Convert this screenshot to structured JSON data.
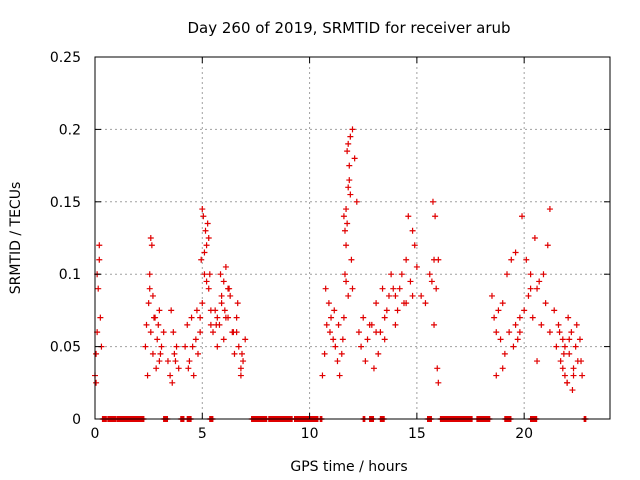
{
  "chart_data": {
    "type": "scatter",
    "title": "Day 260 of 2019, SRMTID for receiver arub",
    "xlabel": "GPS time / hours",
    "ylabel": "SRMTID / TECUs",
    "xlim": [
      0,
      24
    ],
    "ylim": [
      0,
      0.25
    ],
    "xticks": [
      0,
      5,
      10,
      15,
      20
    ],
    "xtick_labels": [
      "0",
      "5",
      "10",
      "15",
      "20"
    ],
    "yticks": [
      0,
      0.05,
      0.1,
      0.15,
      0.2,
      0.25
    ],
    "ytick_labels": [
      "0",
      "0.05",
      "0.1",
      "0.15",
      "0.2",
      "0.25"
    ],
    "grid": true,
    "marker": "+",
    "marker_color": "#e00000",
    "series": [
      {
        "name": "SRMTID",
        "x": [
          0.0,
          0.05,
          0.1,
          0.15,
          0.2,
          0.25,
          0.3,
          0.05,
          0.1,
          0.2,
          2.35,
          2.4,
          2.5,
          2.6,
          2.7,
          2.8,
          2.9,
          3.0,
          3.1,
          3.2,
          2.45,
          2.55,
          2.65,
          2.75,
          2.85,
          2.95,
          3.05,
          2.55,
          2.6,
          2.7,
          3.0,
          3.4,
          3.5,
          3.6,
          3.7,
          3.8,
          3.9,
          3.55,
          3.65,
          3.75,
          4.2,
          4.3,
          4.4,
          4.5,
          4.6,
          4.7,
          4.8,
          4.9,
          5.0,
          5.1,
          5.2,
          5.3,
          5.4,
          4.35,
          4.55,
          4.75,
          4.95,
          5.15,
          5.35,
          5.0,
          5.05,
          5.1,
          5.2,
          5.25,
          5.3,
          4.9,
          5.4,
          5.5,
          5.6,
          5.7,
          5.8,
          5.9,
          6.0,
          6.1,
          6.2,
          6.3,
          6.4,
          6.5,
          6.6,
          6.7,
          6.8,
          6.9,
          7.0,
          5.65,
          5.85,
          6.05,
          6.25,
          6.45,
          6.65,
          6.85,
          5.7,
          5.9,
          6.0,
          6.1,
          6.2,
          6.6,
          6.8,
          10.6,
          10.7,
          10.8,
          10.9,
          11.0,
          11.1,
          11.2,
          11.3,
          11.4,
          11.5,
          10.75,
          10.95,
          11.15,
          11.35,
          11.55,
          11.6,
          11.65,
          11.7,
          11.75,
          11.8,
          11.85,
          11.9,
          12.0,
          12.1,
          12.2,
          11.6,
          11.65,
          11.7,
          11.75,
          11.8,
          11.85,
          11.9,
          11.95,
          12.0,
          11.7,
          11.8,
          12.3,
          12.5,
          12.7,
          12.9,
          13.1,
          13.3,
          13.5,
          13.7,
          13.9,
          14.1,
          14.3,
          14.5,
          14.7,
          14.9,
          12.4,
          12.8,
          13.2,
          13.6,
          14.0,
          14.4,
          14.8,
          12.6,
          13.0,
          13.4,
          13.8,
          14.2,
          14.6,
          13.1,
          13.5,
          14.0,
          14.5,
          14.8,
          15.0,
          15.2,
          15.4,
          15.6,
          15.7,
          15.8,
          15.9,
          16.0,
          15.75,
          15.85,
          15.95,
          15.8,
          16.0,
          18.5,
          18.6,
          18.7,
          18.8,
          18.9,
          19.0,
          19.2,
          19.4,
          19.6,
          19.8,
          20.0,
          20.2,
          20.4,
          20.6,
          20.8,
          21.0,
          21.2,
          21.4,
          18.7,
          19.1,
          19.5,
          19.9,
          20.3,
          20.7,
          21.1,
          19.3,
          19.7,
          20.1,
          20.5,
          20.9,
          19.0,
          19.8,
          20.6,
          21.2,
          19.6,
          20.3,
          21.5,
          21.6,
          21.7,
          21.8,
          21.9,
          22.0,
          22.1,
          22.2,
          22.3,
          22.4,
          22.5,
          22.6,
          22.7,
          21.65,
          21.85,
          22.05,
          22.25,
          22.45,
          22.65,
          21.8,
          21.9,
          22.0,
          22.1,
          22.3
        ],
        "y": [
          0.03,
          0.045,
          0.06,
          0.09,
          0.12,
          0.07,
          0.05,
          0.025,
          0.1,
          0.11,
          0.05,
          0.065,
          0.08,
          0.06,
          0.045,
          0.07,
          0.055,
          0.04,
          0.05,
          0.06,
          0.03,
          0.09,
          0.12,
          0.07,
          0.035,
          0.065,
          0.045,
          0.1,
          0.125,
          0.085,
          0.075,
          0.04,
          0.03,
          0.025,
          0.045,
          0.05,
          0.035,
          0.075,
          0.06,
          0.04,
          0.05,
          0.065,
          0.04,
          0.07,
          0.03,
          0.055,
          0.045,
          0.06,
          0.08,
          0.1,
          0.12,
          0.09,
          0.065,
          0.035,
          0.05,
          0.075,
          0.11,
          0.13,
          0.1,
          0.145,
          0.14,
          0.115,
          0.095,
          0.135,
          0.125,
          0.07,
          0.075,
          0.06,
          0.075,
          0.05,
          0.065,
          0.08,
          0.055,
          0.07,
          0.09,
          0.085,
          0.06,
          0.045,
          0.07,
          0.05,
          0.035,
          0.04,
          0.055,
          0.065,
          0.1,
          0.075,
          0.09,
          0.06,
          0.08,
          0.045,
          0.07,
          0.085,
          0.095,
          0.105,
          0.07,
          0.06,
          0.03,
          0.03,
          0.045,
          0.065,
          0.08,
          0.07,
          0.055,
          0.05,
          0.04,
          0.03,
          0.045,
          0.09,
          0.06,
          0.075,
          0.065,
          0.055,
          0.07,
          0.1,
          0.12,
          0.135,
          0.16,
          0.175,
          0.195,
          0.2,
          0.18,
          0.15,
          0.14,
          0.13,
          0.145,
          0.185,
          0.19,
          0.165,
          0.155,
          0.11,
          0.09,
          0.095,
          0.085,
          0.06,
          0.07,
          0.055,
          0.065,
          0.08,
          0.06,
          0.07,
          0.085,
          0.09,
          0.075,
          0.1,
          0.11,
          0.095,
          0.12,
          0.05,
          0.065,
          0.045,
          0.075,
          0.085,
          0.08,
          0.13,
          0.04,
          0.035,
          0.09,
          0.1,
          0.09,
          0.14,
          0.06,
          0.055,
          0.065,
          0.08,
          0.085,
          0.105,
          0.085,
          0.08,
          0.1,
          0.095,
          0.065,
          0.09,
          0.11,
          0.15,
          0.14,
          0.035,
          0.11,
          0.025,
          0.085,
          0.07,
          0.06,
          0.075,
          0.055,
          0.08,
          0.1,
          0.11,
          0.065,
          0.06,
          0.075,
          0.085,
          0.07,
          0.09,
          0.065,
          0.08,
          0.06,
          0.075,
          0.03,
          0.045,
          0.05,
          0.14,
          0.1,
          0.095,
          0.12,
          0.06,
          0.055,
          0.11,
          0.125,
          0.1,
          0.035,
          0.07,
          0.04,
          0.145,
          0.115,
          0.09,
          0.05,
          0.065,
          0.04,
          0.055,
          0.03,
          0.025,
          0.045,
          0.06,
          0.035,
          0.05,
          0.04,
          0.055,
          0.03,
          0.06,
          0.045,
          0.07,
          0.02,
          0.065,
          0.04,
          0.035,
          0.05,
          0.025,
          0.055,
          0.03
        ],
        "zero_segments": [
          [
            0.35,
            0.55
          ],
          [
            0.6,
            1.0
          ],
          [
            1.05,
            2.3
          ],
          [
            3.2,
            3.4
          ],
          [
            4.0,
            4.15
          ],
          [
            4.3,
            4.5
          ],
          [
            5.35,
            5.5
          ],
          [
            7.3,
            8.0
          ],
          [
            8.1,
            9.2
          ],
          [
            9.3,
            10.4
          ],
          [
            10.5,
            10.6
          ],
          [
            12.5,
            12.6
          ],
          [
            12.8,
            13.0
          ],
          [
            13.3,
            13.5
          ],
          [
            15.5,
            15.7
          ],
          [
            16.1,
            17.6
          ],
          [
            17.8,
            18.4
          ],
          [
            19.1,
            19.4
          ],
          [
            20.3,
            20.6
          ],
          [
            22.8,
            22.9
          ]
        ]
      }
    ]
  }
}
